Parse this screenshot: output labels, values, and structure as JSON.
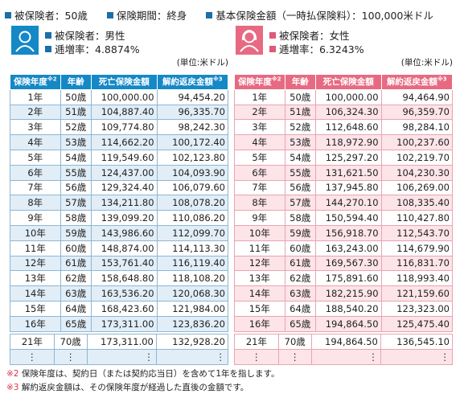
{
  "header": {
    "items": [
      "被保険者：50歳",
      "保険期間：終身",
      "基本保険金額（一時払保険料）：100,000米ドル"
    ]
  },
  "panels": [
    {
      "insured": "被保険者：男性",
      "rate": "逓増率：4.8874%",
      "unit": "(単位:米ドル)",
      "table": {
        "columns": [
          {
            "label": "保険年度",
            "note": "※2"
          },
          {
            "label": "年齢"
          },
          {
            "label": "死亡保険金額"
          },
          {
            "label": "解約返戻金額",
            "note": "※3"
          }
        ],
        "rows": [
          [
            "1年",
            "50歳",
            "100,000.00",
            "94,454.20"
          ],
          [
            "2年",
            "51歳",
            "104,887.40",
            "96,335.70"
          ],
          [
            "3年",
            "52歳",
            "109,774.80",
            "98,242.30"
          ],
          [
            "4年",
            "53歳",
            "114,662.20",
            "100,172.40"
          ],
          [
            "5年",
            "54歳",
            "119,549.60",
            "102,123.80"
          ],
          [
            "6年",
            "55歳",
            "124,437.00",
            "104,093.90"
          ],
          [
            "7年",
            "56歳",
            "129,324.40",
            "106,079.60"
          ],
          [
            "8年",
            "57歳",
            "134,211.80",
            "108,078.20"
          ],
          [
            "9年",
            "58歳",
            "139,099.20",
            "110,086.20"
          ],
          [
            "10年",
            "59歳",
            "143,986.60",
            "112,099.70"
          ],
          [
            "11年",
            "60歳",
            "148,874.00",
            "114,113.30"
          ],
          [
            "12年",
            "61歳",
            "153,761.40",
            "116,119.40"
          ],
          [
            "13年",
            "62歳",
            "158,648.80",
            "118,108.20"
          ],
          [
            "14年",
            "63歳",
            "163,536.20",
            "120,068.30"
          ],
          [
            "15年",
            "64歳",
            "168,423.60",
            "121,984.00"
          ],
          [
            "16年",
            "65歳",
            "173,311.00",
            "123,836.20"
          ]
        ],
        "more_rows": [
          [
            "21年",
            "70歳",
            "173,311.00",
            "132,928.20"
          ],
          [
            "⋮",
            "⋮",
            "⋮",
            "⋮"
          ]
        ]
      }
    },
    {
      "insured": "被保険者：女性",
      "rate": "逓増率：6.3243%",
      "unit": "(単位:米ドル)",
      "table": {
        "columns": [
          {
            "label": "保険年度",
            "note": "※2"
          },
          {
            "label": "年齢"
          },
          {
            "label": "死亡保険金額"
          },
          {
            "label": "解約返戻金額",
            "note": "※3"
          }
        ],
        "rows": [
          [
            "1年",
            "50歳",
            "100,000.00",
            "94,464.90"
          ],
          [
            "2年",
            "51歳",
            "106,324.30",
            "96,359.70"
          ],
          [
            "3年",
            "52歳",
            "112,648.60",
            "98,284.10"
          ],
          [
            "4年",
            "53歳",
            "118,972.90",
            "100,237.60"
          ],
          [
            "5年",
            "54歳",
            "125,297.20",
            "102,219.70"
          ],
          [
            "6年",
            "55歳",
            "131,621.50",
            "104,230.30"
          ],
          [
            "7年",
            "56歳",
            "137,945.80",
            "106,269.00"
          ],
          [
            "8年",
            "57歳",
            "144,270.10",
            "108,335.40"
          ],
          [
            "9年",
            "58歳",
            "150,594.40",
            "110,427.80"
          ],
          [
            "10年",
            "59歳",
            "156,918.70",
            "112,543.70"
          ],
          [
            "11年",
            "60歳",
            "163,243.00",
            "114,679.90"
          ],
          [
            "12年",
            "61歳",
            "169,567.30",
            "116,831.70"
          ],
          [
            "13年",
            "62歳",
            "175,891.60",
            "118,993.40"
          ],
          [
            "14年",
            "63歳",
            "182,215.90",
            "121,159.60"
          ],
          [
            "15年",
            "64歳",
            "188,540.20",
            "123,323.00"
          ],
          [
            "16年",
            "65歳",
            "194,864.50",
            "125,475.40"
          ]
        ],
        "more_rows": [
          [
            "21年",
            "70歳",
            "194,864.50",
            "136,545.10"
          ],
          [
            "⋮",
            "⋮",
            "⋮",
            "⋮"
          ]
        ]
      }
    }
  ],
  "footnotes": [
    {
      "mark": "※2",
      "text": "保険年度は、契約日（または契約応当日）を含めて1年を指します。"
    },
    {
      "mark": "※3",
      "text": "解約返戻金額は、その保険年度が経過した直後の金額です。"
    }
  ]
}
